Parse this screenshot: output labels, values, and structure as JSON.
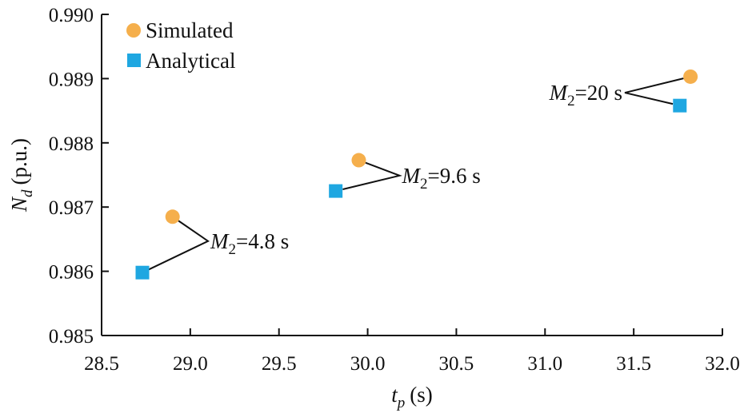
{
  "colors": {
    "simulated": "#F5AF4C",
    "analytical": "#1FA7E1",
    "axis": "#111111"
  },
  "chart_data": {
    "type": "scatter",
    "title": "",
    "xlim": [
      28.5,
      32.0
    ],
    "ylim": [
      0.985,
      0.99
    ],
    "x_ticks": [
      28.5,
      29.0,
      29.5,
      30.0,
      30.5,
      31.0,
      31.5,
      32.0
    ],
    "x_tick_labels": [
      "28.5",
      "29.0",
      "29.5",
      "30.0",
      "30.5",
      "31.0",
      "31.5",
      "32.0"
    ],
    "y_ticks": [
      0.985,
      0.986,
      0.987,
      0.988,
      0.989,
      0.99
    ],
    "y_tick_labels": [
      "0.985",
      "0.986",
      "0.987",
      "0.988",
      "0.989",
      "0.990"
    ],
    "xlabel": {
      "main": "t",
      "sub": "p",
      "unit": "(s)"
    },
    "ylabel": {
      "main": "N",
      "sub": "d",
      "unit": "(p.u.)"
    },
    "legend_position": "top-left",
    "series": [
      {
        "name": "Simulated",
        "marker": "circle",
        "points": [
          {
            "x": 28.9,
            "y": 0.98685
          },
          {
            "x": 29.95,
            "y": 0.98773
          },
          {
            "x": 31.82,
            "y": 0.98903
          }
        ]
      },
      {
        "name": "Analytical",
        "marker": "square",
        "points": [
          {
            "x": 28.73,
            "y": 0.98598
          },
          {
            "x": 29.82,
            "y": 0.98725
          },
          {
            "x": 31.76,
            "y": 0.98858
          }
        ]
      }
    ],
    "annotations": [
      {
        "var": "M",
        "sub": "2",
        "text": "=4.8 s",
        "at": {
          "x": 29.1,
          "y": 0.98647
        }
      },
      {
        "var": "M",
        "sub": "2",
        "text": "=9.6 s",
        "at": {
          "x": 30.18,
          "y": 0.98749
        }
      },
      {
        "var": "M",
        "sub": "2",
        "text": "=20 s",
        "at": {
          "x": 31.45,
          "y": 0.98878
        }
      }
    ]
  }
}
